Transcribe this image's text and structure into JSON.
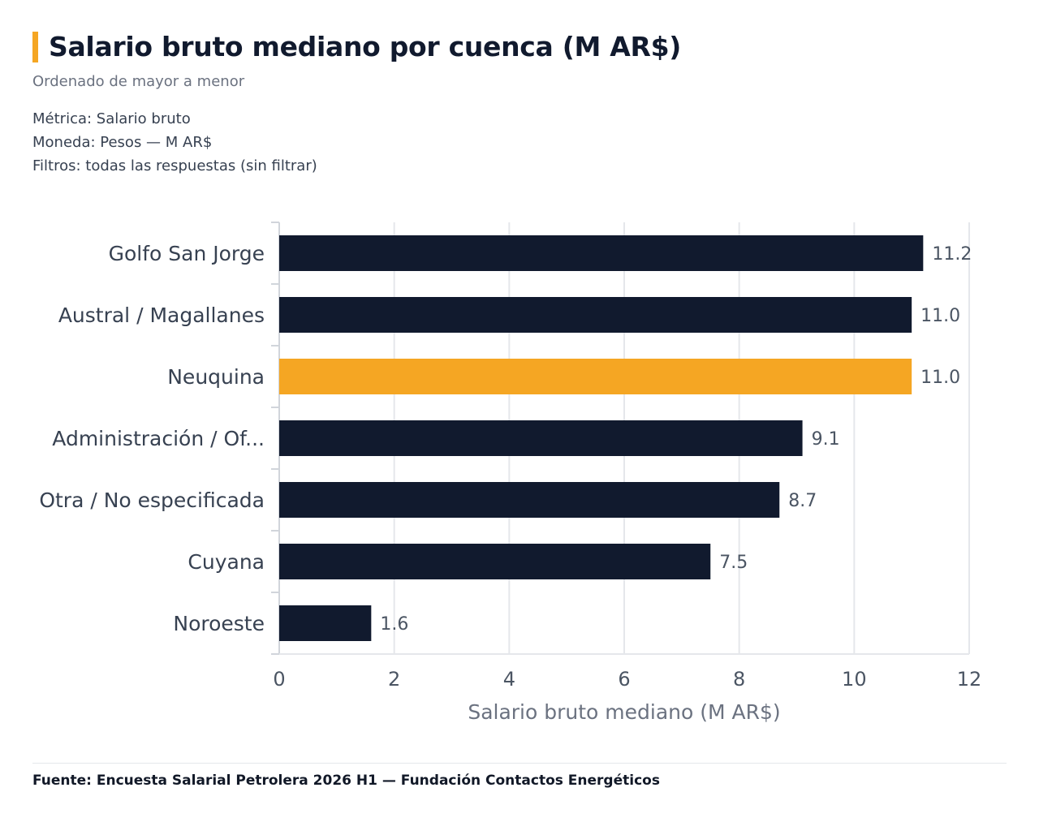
{
  "header": {
    "title": "Salario bruto mediano por cuenca (M AR$)",
    "subtitle": "Ordenado de mayor a menor",
    "meta": [
      "Métrica: Salario bruto",
      "Moneda: Pesos — M AR$",
      "Filtros: todas las respuestas (sin filtrar)"
    ]
  },
  "colors": {
    "accent": "#f5a623",
    "bar": "#111a2e",
    "highlight": "#f5a623",
    "grid": "#e5e7eb",
    "axis_text": "#4b5563"
  },
  "chart_data": {
    "type": "bar",
    "orientation": "horizontal",
    "categories": [
      "Golfo San Jorge",
      "Austral / Magallanes",
      "Neuquina",
      "Administración / Of...",
      "Otra / No especificada",
      "Cuyana",
      "Noroeste"
    ],
    "values": [
      11.2,
      11.0,
      11.0,
      9.1,
      8.7,
      7.5,
      1.6
    ],
    "value_labels": [
      "11.2",
      "11.0",
      "11.0",
      "9.1",
      "8.7",
      "7.5",
      "1.6"
    ],
    "highlight_category": "Neuquina",
    "xlabel": "Salario bruto mediano (M AR$)",
    "ylabel": "",
    "xlim": [
      0,
      12
    ],
    "xticks": [
      0,
      2,
      4,
      6,
      8,
      10,
      12
    ],
    "grid": true
  },
  "footer": {
    "source": "Fuente: Encuesta Salarial Petrolera 2026 H1 — Fundación Contactos Energéticos"
  }
}
